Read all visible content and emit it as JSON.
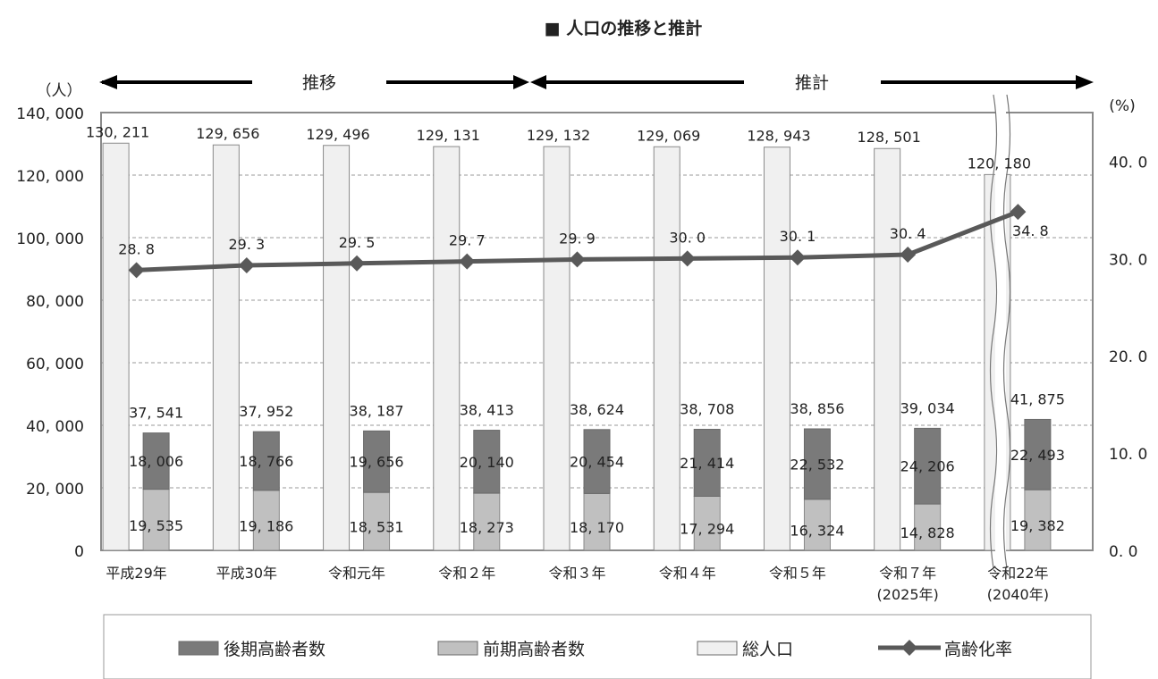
{
  "chart_data": {
    "type": "bar",
    "title": "■ 人口の推移と推計",
    "left_unit": "（人）",
    "right_unit": "(%)",
    "period_actual": "推移",
    "period_projection": "推計",
    "categories": [
      "平成29年",
      "平成30年",
      "令和元年",
      "令和２年",
      "令和３年",
      "令和４年",
      "令和５年",
      "令和７年",
      "令和22年"
    ],
    "category_sublabels": [
      "",
      "",
      "",
      "",
      "",
      "",
      "",
      "(2025年)",
      "(2040年)"
    ],
    "series": [
      {
        "name": "後期高齢者数",
        "type": "bar",
        "stack": "elderly",
        "color": "#7a7a7a",
        "values": [
          18006,
          18766,
          19656,
          20140,
          20454,
          21414,
          22532,
          24206,
          22493
        ],
        "labels": [
          "18, 006",
          "18, 766",
          "19, 656",
          "20, 140",
          "20, 454",
          "21, 414",
          "22, 532",
          "24, 206",
          "22, 493"
        ]
      },
      {
        "name": "前期高齢者数",
        "type": "bar",
        "stack": "elderly",
        "color": "#c0c0c0",
        "values": [
          19535,
          19186,
          18531,
          18273,
          18170,
          17294,
          16324,
          14828,
          19382
        ],
        "labels": [
          "19, 535",
          "19, 186",
          "18, 531",
          "18, 273",
          "18, 170",
          "17, 294",
          "16, 324",
          "14, 828",
          "19, 382"
        ]
      },
      {
        "name": "総人口",
        "type": "bar",
        "color": "#f0f0f0",
        "values": [
          130211,
          129656,
          129496,
          129131,
          129132,
          129069,
          128943,
          128501,
          120180
        ],
        "labels": [
          "130, 211",
          "129, 656",
          "129, 496",
          "129, 131",
          "129, 132",
          "129, 069",
          "128, 943",
          "128, 501",
          "120, 180"
        ]
      },
      {
        "name": "高齢化率",
        "type": "line",
        "axis": "right",
        "color": "#595959",
        "values": [
          28.8,
          29.3,
          29.5,
          29.7,
          29.9,
          30.0,
          30.1,
          30.4,
          34.8
        ],
        "labels": [
          "28. 8",
          "29. 3",
          "29. 5",
          "29. 7",
          "29. 9",
          "30. 0",
          "30. 1",
          "30. 4",
          "34. 8"
        ]
      }
    ],
    "elderly_total_labels": [
      "37, 541",
      "37, 952",
      "38, 187",
      "38, 413",
      "38, 624",
      "38, 708",
      "38, 856",
      "39, 034",
      "41, 875"
    ],
    "y_left": {
      "min": 0,
      "max": 140000,
      "ticks": [
        "0",
        "20, 000",
        "40, 000",
        "60, 000",
        "80, 000",
        "100, 000",
        "120, 000",
        "140, 000"
      ]
    },
    "y_right": {
      "min": 0,
      "max": 45,
      "ticks": [
        "0. 0",
        "10. 0",
        "20. 0",
        "30. 0",
        "40. 0"
      ]
    },
    "grid": true,
    "legend_position": "bottom"
  }
}
